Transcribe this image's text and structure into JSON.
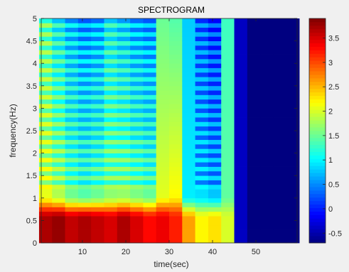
{
  "chart_data": {
    "type": "heatmap",
    "title": "SPECTROGRAM",
    "xlabel": "time(sec)",
    "ylabel": "frequency(Hz)",
    "xlim": [
      0.5,
      59.5
    ],
    "ylim": [
      0,
      5
    ],
    "x_ticks": [
      10,
      20,
      30,
      40,
      50
    ],
    "y_ticks": [
      0,
      0.5,
      1,
      1.5,
      2,
      2.5,
      3,
      3.5,
      4,
      4.5,
      5
    ],
    "x_tick_labels": [
      "10",
      "20",
      "30",
      "40",
      "50"
    ],
    "y_tick_labels": [
      "0",
      "0.5",
      "1",
      "1.5",
      "2",
      "2.5",
      "3",
      "3.5",
      "4",
      "4.5",
      "5"
    ],
    "colorbar": {
      "colormap": "jet",
      "clim": [
        -0.7,
        3.9
      ],
      "ticks": [
        -0.5,
        0,
        0.5,
        1,
        1.5,
        2,
        2.5,
        3,
        3.5
      ],
      "tick_labels": [
        "-0.5",
        "0",
        "0.5",
        "1",
        "1.5",
        "2",
        "2.5",
        "3",
        "3.5"
      ]
    },
    "grid": false,
    "time_bins": [
      1.5,
      4.5,
      7.5,
      10.5,
      13.5,
      16.5,
      19.5,
      22.5,
      25.5,
      28.5,
      31.5,
      34.5,
      37.5,
      40.5,
      43.5,
      46.5,
      49.5,
      52.5,
      55.5,
      58.5
    ],
    "frequency_bins": [
      0.05,
      0.15,
      0.25,
      0.35,
      0.45,
      0.55,
      0.65,
      0.75,
      0.85,
      0.95,
      1.05,
      1.15,
      1.25,
      1.35,
      1.45,
      1.55,
      1.65,
      1.75,
      1.85,
      1.95,
      2.05,
      2.15,
      2.25,
      2.35,
      2.45,
      2.55,
      2.65,
      2.75,
      2.85,
      2.95,
      3.05,
      3.15,
      3.25,
      3.35,
      3.45,
      3.55,
      3.65,
      3.75,
      3.85,
      3.95,
      4.05,
      4.15,
      4.25,
      4.35,
      4.45,
      4.55,
      4.65,
      4.75,
      4.85,
      4.95
    ],
    "column_levels": {
      "top": [
        1.6,
        1.2,
        0.9,
        0.7,
        0.8,
        1.2,
        1.0,
        0.8,
        0.7,
        1.5,
        1.4,
        0.8,
        0.5,
        0.3,
        1.3,
        -0.4,
        -0.7,
        -0.7,
        -0.7,
        -0.7
      ],
      "bottom": [
        2.2,
        2.0,
        1.7,
        1.6,
        1.7,
        1.8,
        1.9,
        1.8,
        1.7,
        2.2,
        2.4,
        1.0,
        1.0,
        0.9,
        1.5,
        -0.4,
        -0.7,
        -0.7,
        -0.7,
        -0.7
      ],
      "low_freq_peak": [
        3.7,
        3.8,
        3.6,
        3.7,
        3.6,
        3.5,
        3.7,
        3.5,
        3.3,
        3.4,
        3.2,
        2.6,
        2.2,
        2.3,
        2.0,
        -0.4,
        -0.7,
        -0.7,
        -0.7,
        -0.7
      ],
      "striped": [
        true,
        true,
        true,
        true,
        true,
        true,
        true,
        true,
        true,
        false,
        false,
        false,
        true,
        true,
        false,
        false,
        false,
        false,
        false,
        false
      ]
    }
  }
}
